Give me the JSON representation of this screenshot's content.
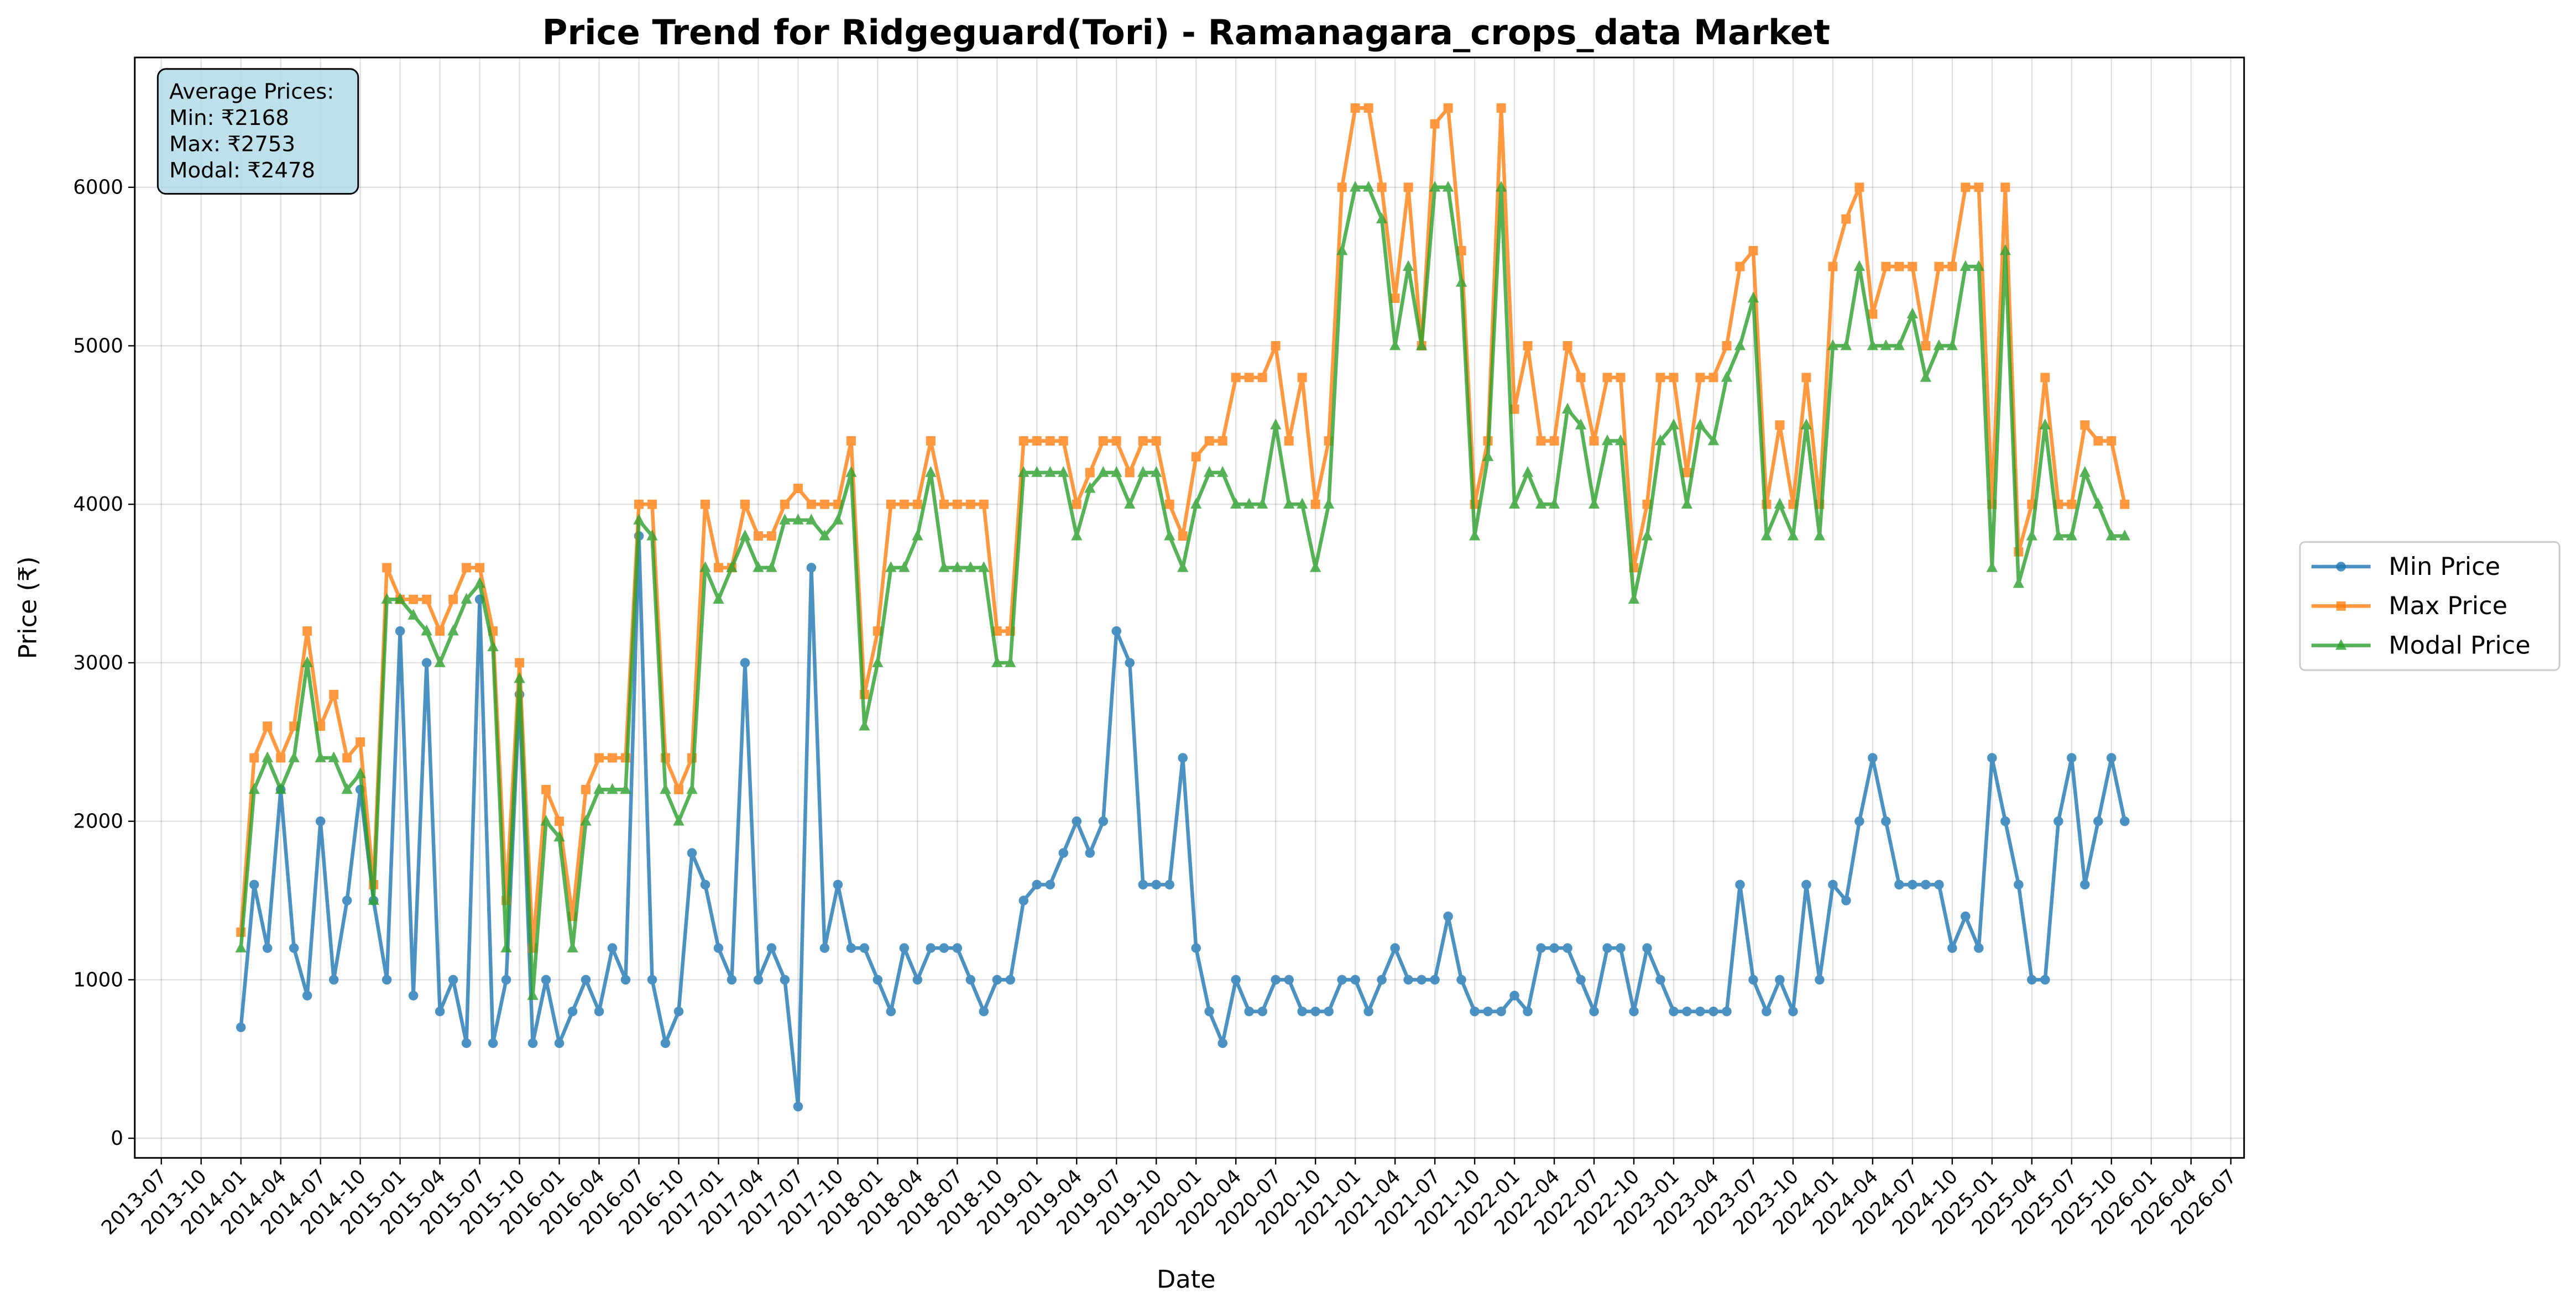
{
  "chart_data": {
    "type": "line",
    "title": "Price Trend for Ridgeguard(Tori) - Ramanagara_crops_data Market",
    "x_label": "Date",
    "y_label": "Price (₹)",
    "annotation": [
      "Average Prices:",
      "Min: ₹2168",
      "Max: ₹2753",
      "Modal: ₹2478"
    ],
    "grid": true,
    "legend": "right",
    "xlim": [
      "2013-05",
      "2026-08"
    ],
    "xticks": [
      "2013-07",
      "2013-10",
      "2014-01",
      "2014-04",
      "2014-07",
      "2014-10",
      "2015-01",
      "2015-04",
      "2015-07",
      "2015-10",
      "2016-01",
      "2016-04",
      "2016-07",
      "2016-10",
      "2017-01",
      "2017-04",
      "2017-07",
      "2017-10",
      "2018-01",
      "2018-04",
      "2018-07",
      "2018-10",
      "2019-01",
      "2019-04",
      "2019-07",
      "2019-10",
      "2020-01",
      "2020-04",
      "2020-07",
      "2020-10",
      "2021-01",
      "2021-04",
      "2021-07",
      "2021-10",
      "2022-01",
      "2022-04",
      "2022-07",
      "2022-10",
      "2023-01",
      "2023-04",
      "2023-07",
      "2023-10",
      "2024-01",
      "2024-04",
      "2024-07",
      "2024-10",
      "2025-01",
      "2025-04",
      "2025-07",
      "2025-10",
      "2026-01",
      "2026-04",
      "2026-07"
    ],
    "ylim": [
      -124,
      6819
    ],
    "yticks": [
      0,
      1000,
      2000,
      3000,
      4000,
      5000,
      6000
    ],
    "x": [
      "2014-01",
      "2014-02",
      "2014-03",
      "2014-04",
      "2014-05",
      "2014-06",
      "2014-07",
      "2014-08",
      "2014-09",
      "2014-10",
      "2014-11",
      "2014-12",
      "2015-01",
      "2015-02",
      "2015-03",
      "2015-04",
      "2015-05",
      "2015-06",
      "2015-07",
      "2015-08",
      "2015-09",
      "2015-10",
      "2015-11",
      "2015-12",
      "2016-01",
      "2016-02",
      "2016-03",
      "2016-04",
      "2016-05",
      "2016-06",
      "2016-07",
      "2016-08",
      "2016-09",
      "2016-10",
      "2016-11",
      "2016-12",
      "2017-01",
      "2017-02",
      "2017-03",
      "2017-04",
      "2017-05",
      "2017-06",
      "2017-07",
      "2017-08",
      "2017-09",
      "2017-10",
      "2017-11",
      "2017-12",
      "2018-01",
      "2018-02",
      "2018-03",
      "2018-04",
      "2018-05",
      "2018-06",
      "2018-07",
      "2018-08",
      "2018-09",
      "2018-10",
      "2018-11",
      "2018-12",
      "2019-01",
      "2019-02",
      "2019-03",
      "2019-04",
      "2019-05",
      "2019-06",
      "2019-07",
      "2019-08",
      "2019-09",
      "2019-10",
      "2019-11",
      "2019-12",
      "2020-01",
      "2020-02",
      "2020-03",
      "2020-04",
      "2020-05",
      "2020-06",
      "2020-07",
      "2020-08",
      "2020-09",
      "2020-10",
      "2020-11",
      "2020-12",
      "2021-01",
      "2021-02",
      "2021-03",
      "2021-04",
      "2021-05",
      "2021-06",
      "2021-07",
      "2021-08",
      "2021-09",
      "2021-10",
      "2021-11",
      "2021-12",
      "2022-01",
      "2022-02",
      "2022-03",
      "2022-04",
      "2022-05",
      "2022-06",
      "2022-07",
      "2022-08",
      "2022-09",
      "2022-10",
      "2022-11",
      "2022-12",
      "2023-01",
      "2023-02",
      "2023-03",
      "2023-04",
      "2023-05",
      "2023-06",
      "2023-07",
      "2023-08",
      "2023-09",
      "2023-10",
      "2023-11",
      "2023-12",
      "2024-01",
      "2024-02",
      "2024-03",
      "2024-04",
      "2024-05",
      "2024-06",
      "2024-07",
      "2024-08",
      "2024-09",
      "2024-10",
      "2024-11",
      "2024-12",
      "2025-01",
      "2025-02",
      "2025-03",
      "2025-04",
      "2025-05",
      "2025-06",
      "2025-07",
      "2025-08",
      "2025-09",
      "2025-10",
      "2025-11"
    ],
    "series": [
      {
        "name": "Min Price",
        "color": "#1f77b4",
        "marker": "circle",
        "values": [
          700,
          1600,
          1200,
          2200,
          1200,
          900,
          2000,
          1000,
          1500,
          2200,
          1500,
          1000,
          3200,
          900,
          3000,
          800,
          1000,
          600,
          3400,
          600,
          1000,
          2800,
          600,
          1000,
          600,
          800,
          1000,
          800,
          1200,
          1000,
          3800,
          1000,
          600,
          800,
          1800,
          1600,
          1200,
          1000,
          3000,
          1000,
          1200,
          1000,
          200,
          3600,
          1200,
          1600,
          1200,
          1200,
          1000,
          800,
          1200,
          1000,
          1200,
          1200,
          1200,
          1000,
          800,
          1000,
          1000,
          1500,
          1600,
          1600,
          1800,
          2000,
          1800,
          2000,
          3200,
          3000,
          1600,
          1600,
          1600,
          2400,
          1200,
          800,
          600,
          1000,
          800,
          800,
          1000,
          1000,
          800,
          800,
          800,
          1000,
          1000,
          800,
          1000,
          1200,
          1000,
          1000,
          1000,
          1400,
          1000,
          800,
          800,
          800,
          900,
          800,
          1200,
          1200,
          1200,
          1000,
          800,
          1200,
          1200,
          800,
          1200,
          1000,
          800,
          800,
          800,
          800,
          800,
          1600,
          1000,
          800,
          1000,
          800,
          1600,
          1000,
          1600,
          1500,
          2000,
          2400,
          2000,
          1600,
          1600,
          1600,
          1600,
          1200,
          1400,
          1200,
          2400,
          2000,
          1600,
          1000,
          1000,
          2000,
          2400,
          1600,
          2000,
          2400,
          2000
        ]
      },
      {
        "name": "Max Price",
        "color": "#ff7f0e",
        "marker": "square",
        "values": [
          1300,
          2400,
          2600,
          2400,
          2600,
          3200,
          2600,
          2800,
          2400,
          2500,
          1600,
          3600,
          3400,
          3400,
          3400,
          3200,
          3400,
          3600,
          3600,
          3200,
          1500,
          3000,
          1200,
          2200,
          2000,
          1400,
          2200,
          2400,
          2400,
          2400,
          4000,
          4000,
          2400,
          2200,
          2400,
          4000,
          3600,
          3600,
          4000,
          3800,
          3800,
          4000,
          4100,
          4000,
          4000,
          4000,
          4400,
          2800,
          3200,
          4000,
          4000,
          4000,
          4400,
          4000,
          4000,
          4000,
          4000,
          3200,
          3200,
          4400,
          4400,
          4400,
          4400,
          4000,
          4200,
          4400,
          4400,
          4200,
          4400,
          4400,
          4000,
          3800,
          4300,
          4400,
          4400,
          4800,
          4800,
          4800,
          5000,
          4400,
          4800,
          4000,
          4400,
          6000,
          6500,
          6500,
          6000,
          5300,
          6000,
          5000,
          6400,
          6500,
          5600,
          4000,
          4400,
          6500,
          4600,
          5000,
          4400,
          4400,
          5000,
          4800,
          4400,
          4800,
          4800,
          3600,
          4000,
          4800,
          4800,
          4200,
          4800,
          4800,
          5000,
          5500,
          5600,
          4000,
          4500,
          4000,
          4800,
          4000,
          5500,
          5800,
          6000,
          5200,
          5500,
          5500,
          5500,
          5000,
          5500,
          5500,
          6000,
          6000,
          4000,
          6000,
          3700,
          4000,
          4800,
          4000,
          4000,
          4500,
          4400,
          4400,
          4000
        ]
      },
      {
        "name": "Modal Price",
        "color": "#2ca02c",
        "marker": "triangle",
        "values": [
          1200,
          2200,
          2400,
          2200,
          2400,
          3000,
          2400,
          2400,
          2200,
          2300,
          1500,
          3400,
          3400,
          3300,
          3200,
          3000,
          3200,
          3400,
          3500,
          3100,
          1200,
          2900,
          900,
          2000,
          1900,
          1200,
          2000,
          2200,
          2200,
          2200,
          3900,
          3800,
          2200,
          2000,
          2200,
          3600,
          3400,
          3600,
          3800,
          3600,
          3600,
          3900,
          3900,
          3900,
          3800,
          3900,
          4200,
          2600,
          3000,
          3600,
          3600,
          3800,
          4200,
          3600,
          3600,
          3600,
          3600,
          3000,
          3000,
          4200,
          4200,
          4200,
          4200,
          3800,
          4100,
          4200,
          4200,
          4000,
          4200,
          4200,
          3800,
          3600,
          4000,
          4200,
          4200,
          4000,
          4000,
          4000,
          4500,
          4000,
          4000,
          3600,
          4000,
          5600,
          6000,
          6000,
          5800,
          5000,
          5500,
          5000,
          6000,
          6000,
          5400,
          3800,
          4300,
          6000,
          4000,
          4200,
          4000,
          4000,
          4600,
          4500,
          4000,
          4400,
          4400,
          3400,
          3800,
          4400,
          4500,
          4000,
          4500,
          4400,
          4800,
          5000,
          5300,
          3800,
          4000,
          3800,
          4500,
          3800,
          5000,
          5000,
          5500,
          5000,
          5000,
          5000,
          5200,
          4800,
          5000,
          5000,
          5500,
          5500,
          3600,
          5600,
          3500,
          3800,
          4500,
          3800,
          3800,
          4200,
          4000,
          3800,
          3800
        ]
      }
    ]
  }
}
